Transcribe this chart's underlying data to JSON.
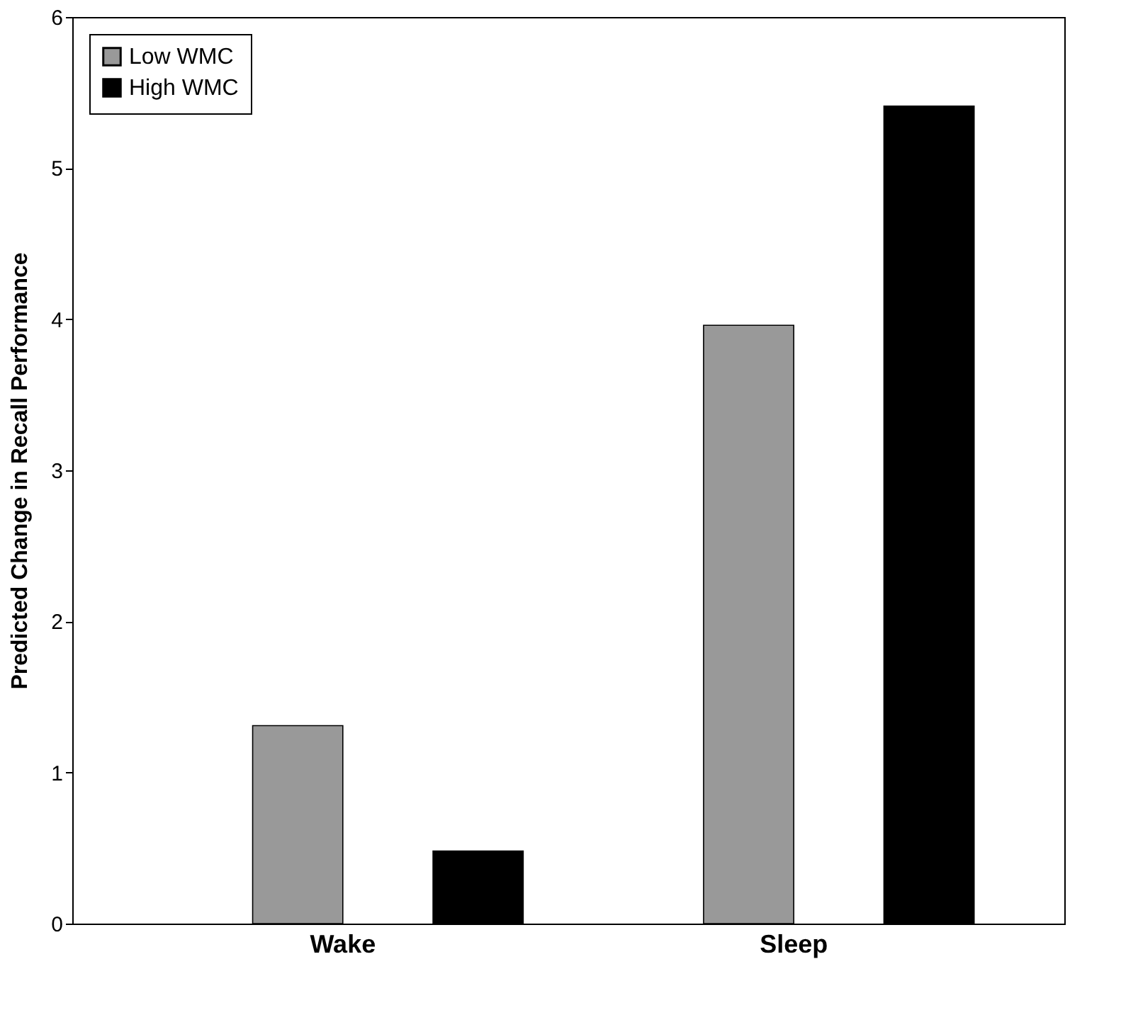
{
  "chart_data": {
    "type": "bar",
    "ylabel": "Predicted Change in Recall Performance",
    "categories": [
      "Wake",
      "Sleep"
    ],
    "series": [
      {
        "name": "Low WMC",
        "color": "#999999",
        "values": [
          1.31,
          3.96
        ]
      },
      {
        "name": "High WMC",
        "color": "#000000",
        "values": [
          0.48,
          5.41
        ]
      }
    ],
    "ylim": [
      0,
      6
    ],
    "yticks": [
      0,
      1,
      2,
      3,
      4,
      5,
      6
    ],
    "grid": false,
    "legend": "top left"
  }
}
